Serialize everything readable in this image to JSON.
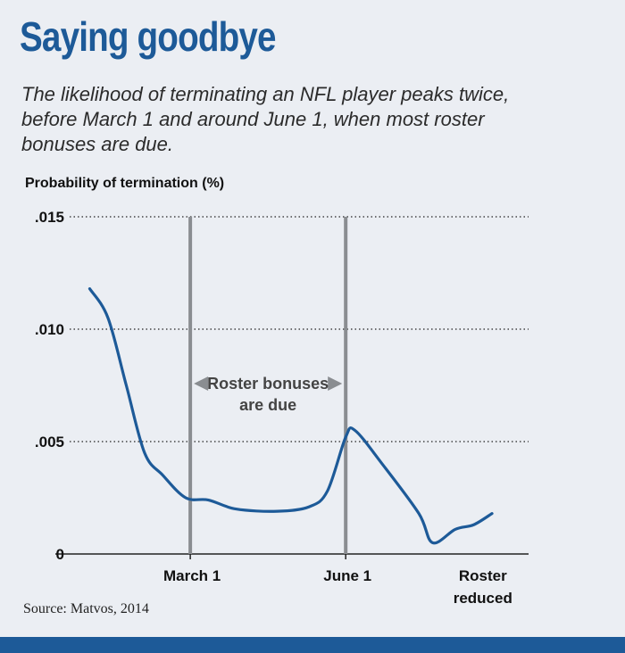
{
  "header": {
    "title": "Saying goodbye",
    "subtitle": "The likelihood of terminating an NFL player peaks twice, before March 1 and around June 1, when most roster bonuses are due."
  },
  "chart_data": {
    "type": "line",
    "title": "Saying goodbye",
    "ylabel": "Probability of termination (%)",
    "xlabel": "",
    "ylim": [
      0,
      0.015
    ],
    "yticks": [
      {
        "value": 0.015,
        "label": ".015"
      },
      {
        "value": 0.01,
        "label": ".010"
      },
      {
        "value": 0.005,
        "label": ".005"
      },
      {
        "value": 0,
        "label": "0"
      }
    ],
    "grid": "dotted horizontal",
    "x_markers": [
      {
        "name": "march-1",
        "label": "March 1",
        "x": 0.26,
        "vline": true
      },
      {
        "name": "june-1",
        "label": "June 1",
        "x": 0.6,
        "vline": true
      },
      {
        "name": "roster-reduced",
        "label": "Roster reduced",
        "x": 0.9,
        "vline": false
      }
    ],
    "annotation": {
      "text_line1": "Roster bonuses",
      "text_line2": "are due",
      "span": [
        "March 1",
        "June 1"
      ]
    },
    "series": [
      {
        "name": "Probability of termination",
        "color": "#1d5a98",
        "points": [
          [
            0.04,
            0.0118
          ],
          [
            0.08,
            0.0105
          ],
          [
            0.12,
            0.0075
          ],
          [
            0.16,
            0.0045
          ],
          [
            0.2,
            0.0035
          ],
          [
            0.25,
            0.0025
          ],
          [
            0.3,
            0.0024
          ],
          [
            0.36,
            0.002
          ],
          [
            0.45,
            0.0019
          ],
          [
            0.52,
            0.0021
          ],
          [
            0.56,
            0.0028
          ],
          [
            0.6,
            0.0052
          ],
          [
            0.62,
            0.0055
          ],
          [
            0.68,
            0.004
          ],
          [
            0.76,
            0.0018
          ],
          [
            0.79,
            0.0005
          ],
          [
            0.84,
            0.0011
          ],
          [
            0.88,
            0.0013
          ],
          [
            0.92,
            0.0018
          ]
        ]
      }
    ]
  },
  "source": "Source: Matvos, 2014"
}
